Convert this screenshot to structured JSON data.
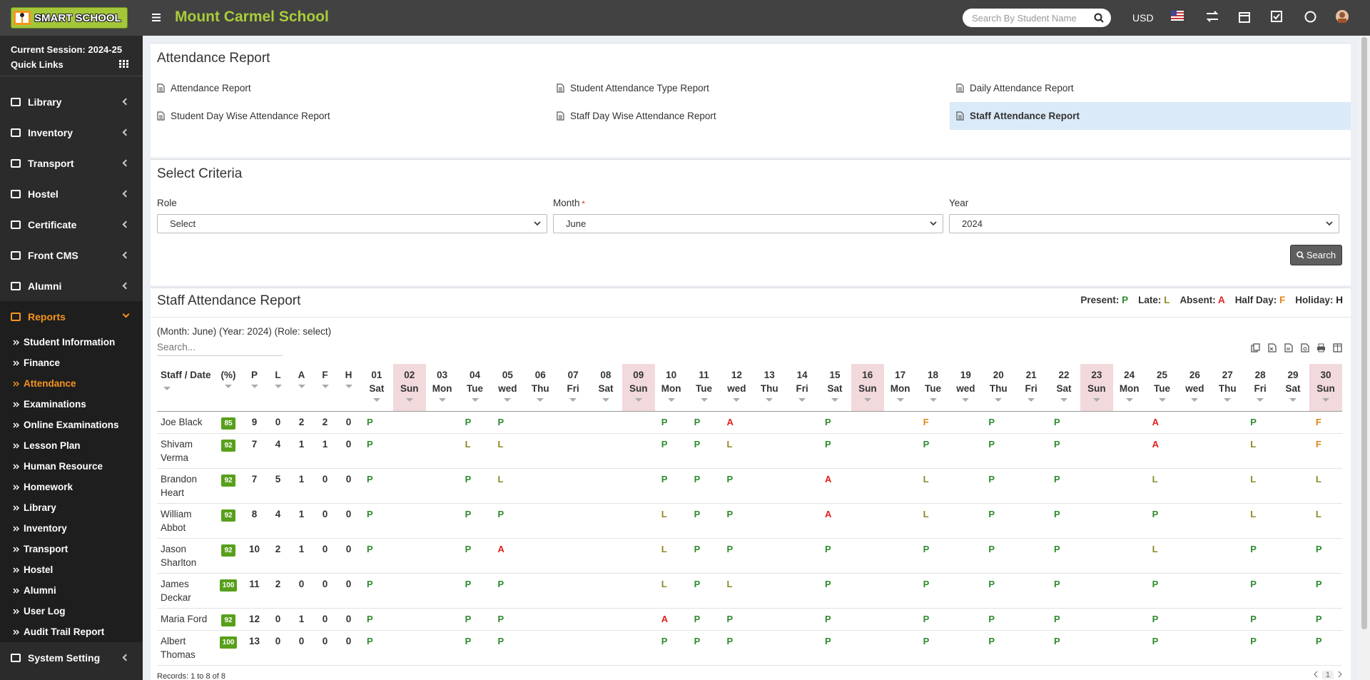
{
  "header": {
    "logo": "SMART SCHOOL",
    "school_name": "Mount Carmel School",
    "search_placeholder": "Search By Student Name",
    "currency": "USD"
  },
  "sidebar": {
    "session": "Current Session: 2024-25",
    "quick_links": "Quick Links",
    "menu": [
      "Library",
      "Inventory",
      "Transport",
      "Hostel",
      "Certificate",
      "Front CMS",
      "Alumni"
    ],
    "open_menu": {
      "label": "Reports",
      "items": [
        {
          "label": "Student Information"
        },
        {
          "label": "Finance"
        },
        {
          "label": "Attendance",
          "active": true
        },
        {
          "label": "Examinations"
        },
        {
          "label": "Online Examinations"
        },
        {
          "label": "Lesson Plan"
        },
        {
          "label": "Human Resource"
        },
        {
          "label": "Homework"
        },
        {
          "label": "Library"
        },
        {
          "label": "Inventory"
        },
        {
          "label": "Transport"
        },
        {
          "label": "Hostel"
        },
        {
          "label": "Alumni"
        },
        {
          "label": "User Log"
        },
        {
          "label": "Audit Trail Report"
        }
      ]
    },
    "menu_end": [
      "System Setting"
    ]
  },
  "reports_box": {
    "title": "Attendance Report",
    "links": [
      {
        "label": "Attendance Report"
      },
      {
        "label": "Student Attendance Type Report"
      },
      {
        "label": "Daily Attendance Report"
      },
      {
        "label": "Student Day Wise Attendance Report"
      },
      {
        "label": "Staff Day Wise Attendance Report"
      },
      {
        "label": "Staff Attendance Report",
        "active": true
      }
    ]
  },
  "criteria": {
    "title": "Select Criteria",
    "fields": [
      {
        "label": "Role",
        "value": "Select"
      },
      {
        "label": "Month",
        "required": "*",
        "value": "June"
      },
      {
        "label": "Year",
        "value": "2024"
      }
    ],
    "button": "Search"
  },
  "report": {
    "title": "Staff Attendance Report",
    "legend": [
      {
        "label": "Present:",
        "code": "P"
      },
      {
        "label": "Late:",
        "code": "L"
      },
      {
        "label": "Absent:",
        "code": "A"
      },
      {
        "label": "Half Day:",
        "code": "F"
      },
      {
        "label": "Holiday:",
        "code": "H"
      }
    ],
    "code_colors": {
      "P": "#2e8b2e",
      "L": "#8d8a24",
      "A": "#e0201c",
      "F": "#e0861a",
      "H": "#222222"
    },
    "info": "(Month: June) (Year: 2024) (Role: select)",
    "search_placeholder": "Search...",
    "columns": [
      "Staff / Date",
      "(%)",
      "P",
      "L",
      "A",
      "F",
      "H"
    ],
    "days": [
      {
        "date": "01",
        "day": "Sat"
      },
      {
        "date": "02",
        "day": "Sun",
        "holiday": true
      },
      {
        "date": "03",
        "day": "Mon"
      },
      {
        "date": "04",
        "day": "Tue"
      },
      {
        "date": "05",
        "day": "wed"
      },
      {
        "date": "06",
        "day": "Thu"
      },
      {
        "date": "07",
        "day": "Fri"
      },
      {
        "date": "08",
        "day": "Sat"
      },
      {
        "date": "09",
        "day": "Sun",
        "holiday": true
      },
      {
        "date": "10",
        "day": "Mon"
      },
      {
        "date": "11",
        "day": "Tue"
      },
      {
        "date": "12",
        "day": "wed"
      },
      {
        "date": "13",
        "day": "Thu"
      },
      {
        "date": "14",
        "day": "Fri"
      },
      {
        "date": "15",
        "day": "Sat"
      },
      {
        "date": "16",
        "day": "Sun",
        "holiday": true
      },
      {
        "date": "17",
        "day": "Mon"
      },
      {
        "date": "18",
        "day": "Tue"
      },
      {
        "date": "19",
        "day": "wed"
      },
      {
        "date": "20",
        "day": "Thu"
      },
      {
        "date": "21",
        "day": "Fri"
      },
      {
        "date": "22",
        "day": "Sat"
      },
      {
        "date": "23",
        "day": "Sun",
        "holiday": true
      },
      {
        "date": "24",
        "day": "Mon"
      },
      {
        "date": "25",
        "day": "Tue"
      },
      {
        "date": "26",
        "day": "wed"
      },
      {
        "date": "27",
        "day": "Thu"
      },
      {
        "date": "28",
        "day": "Fri"
      },
      {
        "date": "29",
        "day": "Sat"
      },
      {
        "date": "30",
        "day": "Sun",
        "holiday": true
      }
    ],
    "rows": [
      {
        "name": "Joe Black",
        "percent": 85,
        "counts": [
          9,
          0,
          2,
          2,
          0
        ],
        "marks": [
          "P",
          null,
          null,
          "P",
          "P",
          null,
          null,
          null,
          null,
          "P",
          "P",
          "A",
          null,
          null,
          "P",
          null,
          null,
          "F",
          null,
          "P",
          null,
          "P",
          null,
          null,
          "A",
          null,
          null,
          "P",
          null,
          "F"
        ]
      },
      {
        "name": "Shivam Verma",
        "percent": 92,
        "counts": [
          7,
          4,
          1,
          1,
          0
        ],
        "marks": [
          "P",
          null,
          null,
          "L",
          "L",
          null,
          null,
          null,
          null,
          "P",
          "P",
          "L",
          null,
          null,
          "P",
          null,
          null,
          "P",
          null,
          "P",
          null,
          "P",
          null,
          null,
          "A",
          null,
          null,
          "L",
          null,
          "F"
        ]
      },
      {
        "name": "Brandon Heart",
        "percent": 92,
        "counts": [
          7,
          5,
          1,
          0,
          0
        ],
        "marks": [
          "P",
          null,
          null,
          "P",
          "L",
          null,
          null,
          null,
          null,
          "P",
          "P",
          "P",
          null,
          null,
          "A",
          null,
          null,
          "L",
          null,
          "P",
          null,
          "P",
          null,
          null,
          "L",
          null,
          null,
          "L",
          null,
          "L"
        ]
      },
      {
        "name": "William Abbot",
        "percent": 92,
        "counts": [
          8,
          4,
          1,
          0,
          0
        ],
        "marks": [
          "P",
          null,
          null,
          "P",
          "P",
          null,
          null,
          null,
          null,
          "L",
          "P",
          "P",
          null,
          null,
          "A",
          null,
          null,
          "L",
          null,
          "P",
          null,
          "P",
          null,
          null,
          "P",
          null,
          null,
          "L",
          null,
          "L"
        ]
      },
      {
        "name": "Jason Sharlton",
        "percent": 92,
        "counts": [
          10,
          2,
          1,
          0,
          0
        ],
        "marks": [
          "P",
          null,
          null,
          "P",
          "A",
          null,
          null,
          null,
          null,
          "L",
          "P",
          "P",
          null,
          null,
          "P",
          null,
          null,
          "P",
          null,
          "P",
          null,
          "P",
          null,
          null,
          "L",
          null,
          null,
          "P",
          null,
          "P"
        ]
      },
      {
        "name": "James Deckar",
        "percent": 100,
        "counts": [
          11,
          2,
          0,
          0,
          0
        ],
        "marks": [
          "P",
          null,
          null,
          "P",
          "P",
          null,
          null,
          null,
          null,
          "L",
          "P",
          "L",
          null,
          null,
          "P",
          null,
          null,
          "P",
          null,
          "P",
          null,
          "P",
          null,
          null,
          "P",
          null,
          null,
          "P",
          null,
          "P"
        ]
      },
      {
        "name": "Maria Ford",
        "percent": 92,
        "counts": [
          12,
          0,
          1,
          0,
          0
        ],
        "marks": [
          "P",
          null,
          null,
          "P",
          "P",
          null,
          null,
          null,
          null,
          "A",
          "P",
          "P",
          null,
          null,
          "P",
          null,
          null,
          "P",
          null,
          "P",
          null,
          "P",
          null,
          null,
          "P",
          null,
          null,
          "P",
          null,
          "P"
        ]
      },
      {
        "name": "Albert Thomas",
        "percent": 100,
        "counts": [
          13,
          0,
          0,
          0,
          0
        ],
        "marks": [
          "P",
          null,
          null,
          "P",
          "P",
          null,
          null,
          null,
          null,
          "P",
          "P",
          "P",
          null,
          null,
          "P",
          null,
          null,
          "P",
          null,
          "P",
          null,
          "P",
          null,
          null,
          "P",
          null,
          null,
          "P",
          null,
          "P"
        ]
      }
    ],
    "records": "Records: 1 to 8 of 8",
    "page": "1"
  }
}
